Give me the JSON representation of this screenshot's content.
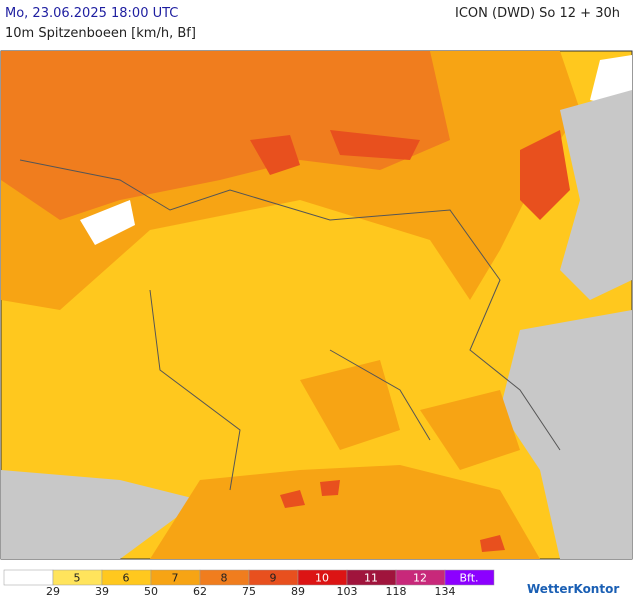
{
  "header": {
    "datetime": "Mo, 23.06.2025 18:00 UTC",
    "model": "ICON (DWD) So 12 + 30h",
    "parameter": "10m Spitzenboeen [km/h, Bf]"
  },
  "legend": {
    "classes": [
      {
        "color": "#ffffff"
      },
      {
        "label": "5",
        "color": "#ffe45c"
      },
      {
        "label": "6",
        "color": "#ffc81e"
      },
      {
        "label": "7",
        "color": "#f7a414"
      },
      {
        "label": "8",
        "color": "#f07d1e"
      },
      {
        "label": "9",
        "color": "#e8501e"
      },
      {
        "label": "10",
        "color": "#dc1414"
      },
      {
        "label": "11",
        "color": "#a0143c"
      },
      {
        "label": "12",
        "color": "#c8287a"
      },
      {
        "label": "Bft.",
        "color": "#8c00ff"
      }
    ],
    "kmh": [
      29,
      39,
      50,
      62,
      75,
      89,
      103,
      118,
      134
    ]
  },
  "logo": "WetterKontor"
}
